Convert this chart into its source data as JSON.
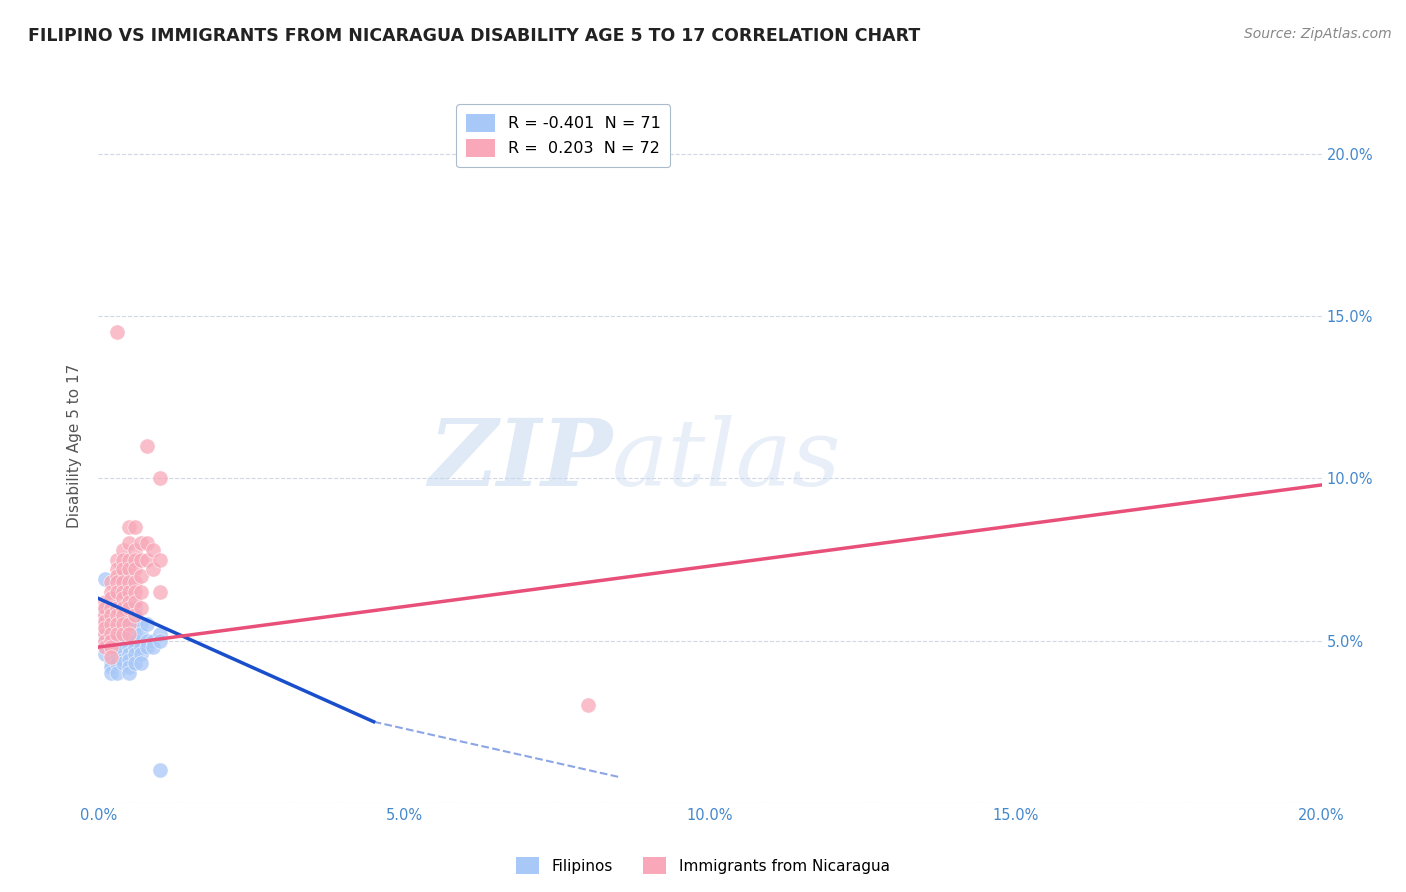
{
  "title": "FILIPINO VS IMMIGRANTS FROM NICARAGUA DISABILITY AGE 5 TO 17 CORRELATION CHART",
  "source": "Source: ZipAtlas.com",
  "ylabel": "Disability Age 5 to 17",
  "xlim": [
    0.0,
    0.2
  ],
  "ylim": [
    0.0,
    0.22
  ],
  "yticks": [
    0.0,
    0.05,
    0.1,
    0.15,
    0.2
  ],
  "ytick_labels": [
    "",
    "5.0%",
    "10.0%",
    "15.0%",
    "20.0%"
  ],
  "xticks": [
    0.0,
    0.05,
    0.1,
    0.15,
    0.2
  ],
  "xtick_labels": [
    "0.0%",
    "5.0%",
    "10.0%",
    "15.0%",
    "20.0%"
  ],
  "legend_entries": [
    {
      "label": "R = -0.401  N = 71",
      "color": "#a8c8f8"
    },
    {
      "label": "R =  0.203  N = 72",
      "color": "#f8a8b8"
    }
  ],
  "filipinos_color": "#a8c8f8",
  "nicaragua_color": "#f8a8b8",
  "filipinos_line_color": "#1a4fcc",
  "nicaragua_line_color": "#e8507a",
  "filipinos_scatter": [
    [
      0.001,
      0.069
    ],
    [
      0.001,
      0.059
    ],
    [
      0.001,
      0.059
    ],
    [
      0.001,
      0.052
    ],
    [
      0.001,
      0.06
    ],
    [
      0.001,
      0.058
    ],
    [
      0.001,
      0.055
    ],
    [
      0.001,
      0.05
    ],
    [
      0.001,
      0.048
    ],
    [
      0.001,
      0.046
    ],
    [
      0.002,
      0.063
    ],
    [
      0.002,
      0.058
    ],
    [
      0.002,
      0.055
    ],
    [
      0.002,
      0.052
    ],
    [
      0.002,
      0.05
    ],
    [
      0.002,
      0.048
    ],
    [
      0.002,
      0.046
    ],
    [
      0.002,
      0.043
    ],
    [
      0.002,
      0.042
    ],
    [
      0.002,
      0.04
    ],
    [
      0.003,
      0.06
    ],
    [
      0.003,
      0.058
    ],
    [
      0.003,
      0.055
    ],
    [
      0.003,
      0.052
    ],
    [
      0.003,
      0.05
    ],
    [
      0.003,
      0.048
    ],
    [
      0.003,
      0.046
    ],
    [
      0.003,
      0.045
    ],
    [
      0.003,
      0.043
    ],
    [
      0.003,
      0.04
    ],
    [
      0.004,
      0.07
    ],
    [
      0.004,
      0.065
    ],
    [
      0.004,
      0.06
    ],
    [
      0.004,
      0.057
    ],
    [
      0.004,
      0.055
    ],
    [
      0.004,
      0.052
    ],
    [
      0.004,
      0.05
    ],
    [
      0.004,
      0.047
    ],
    [
      0.004,
      0.044
    ],
    [
      0.004,
      0.043
    ],
    [
      0.005,
      0.06
    ],
    [
      0.005,
      0.057
    ],
    [
      0.005,
      0.055
    ],
    [
      0.005,
      0.052
    ],
    [
      0.005,
      0.05
    ],
    [
      0.005,
      0.048
    ],
    [
      0.005,
      0.046
    ],
    [
      0.005,
      0.044
    ],
    [
      0.005,
      0.042
    ],
    [
      0.005,
      0.04
    ],
    [
      0.006,
      0.06
    ],
    [
      0.006,
      0.058
    ],
    [
      0.006,
      0.055
    ],
    [
      0.006,
      0.052
    ],
    [
      0.006,
      0.05
    ],
    [
      0.006,
      0.048
    ],
    [
      0.006,
      0.046
    ],
    [
      0.006,
      0.043
    ],
    [
      0.007,
      0.055
    ],
    [
      0.007,
      0.052
    ],
    [
      0.007,
      0.048
    ],
    [
      0.007,
      0.046
    ],
    [
      0.007,
      0.043
    ],
    [
      0.008,
      0.055
    ],
    [
      0.008,
      0.05
    ],
    [
      0.008,
      0.048
    ],
    [
      0.009,
      0.05
    ],
    [
      0.009,
      0.048
    ],
    [
      0.01,
      0.052
    ],
    [
      0.01,
      0.05
    ],
    [
      0.01,
      0.01
    ]
  ],
  "nicaragua_scatter": [
    [
      0.001,
      0.058
    ],
    [
      0.001,
      0.062
    ],
    [
      0.001,
      0.055
    ],
    [
      0.001,
      0.052
    ],
    [
      0.001,
      0.058
    ],
    [
      0.001,
      0.06
    ],
    [
      0.001,
      0.056
    ],
    [
      0.001,
      0.054
    ],
    [
      0.001,
      0.05
    ],
    [
      0.001,
      0.048
    ],
    [
      0.002,
      0.068
    ],
    [
      0.002,
      0.065
    ],
    [
      0.002,
      0.063
    ],
    [
      0.002,
      0.06
    ],
    [
      0.002,
      0.058
    ],
    [
      0.002,
      0.055
    ],
    [
      0.002,
      0.052
    ],
    [
      0.002,
      0.05
    ],
    [
      0.002,
      0.048
    ],
    [
      0.002,
      0.045
    ],
    [
      0.003,
      0.075
    ],
    [
      0.003,
      0.072
    ],
    [
      0.003,
      0.07
    ],
    [
      0.003,
      0.068
    ],
    [
      0.003,
      0.065
    ],
    [
      0.003,
      0.06
    ],
    [
      0.003,
      0.058
    ],
    [
      0.003,
      0.055
    ],
    [
      0.003,
      0.052
    ],
    [
      0.003,
      0.145
    ],
    [
      0.004,
      0.078
    ],
    [
      0.004,
      0.075
    ],
    [
      0.004,
      0.072
    ],
    [
      0.004,
      0.068
    ],
    [
      0.004,
      0.065
    ],
    [
      0.004,
      0.063
    ],
    [
      0.004,
      0.06
    ],
    [
      0.004,
      0.058
    ],
    [
      0.004,
      0.055
    ],
    [
      0.004,
      0.052
    ],
    [
      0.005,
      0.085
    ],
    [
      0.005,
      0.08
    ],
    [
      0.005,
      0.075
    ],
    [
      0.005,
      0.072
    ],
    [
      0.005,
      0.068
    ],
    [
      0.005,
      0.065
    ],
    [
      0.005,
      0.062
    ],
    [
      0.005,
      0.06
    ],
    [
      0.005,
      0.055
    ],
    [
      0.005,
      0.052
    ],
    [
      0.006,
      0.085
    ],
    [
      0.006,
      0.078
    ],
    [
      0.006,
      0.075
    ],
    [
      0.006,
      0.072
    ],
    [
      0.006,
      0.068
    ],
    [
      0.006,
      0.065
    ],
    [
      0.006,
      0.062
    ],
    [
      0.006,
      0.058
    ],
    [
      0.007,
      0.08
    ],
    [
      0.007,
      0.075
    ],
    [
      0.007,
      0.07
    ],
    [
      0.007,
      0.065
    ],
    [
      0.007,
      0.06
    ],
    [
      0.008,
      0.11
    ],
    [
      0.008,
      0.08
    ],
    [
      0.008,
      0.075
    ],
    [
      0.009,
      0.078
    ],
    [
      0.009,
      0.072
    ],
    [
      0.01,
      0.1
    ],
    [
      0.01,
      0.075
    ],
    [
      0.01,
      0.065
    ],
    [
      0.08,
      0.03
    ]
  ],
  "filipinos_trendline_solid": [
    [
      0.0,
      0.063
    ],
    [
      0.045,
      0.025
    ]
  ],
  "filipinos_trendline_dash": [
    [
      0.045,
      0.025
    ],
    [
      0.085,
      0.008
    ]
  ],
  "nicaragua_trendline": [
    [
      0.0,
      0.048
    ],
    [
      0.2,
      0.098
    ]
  ],
  "background_color": "#ffffff",
  "grid_color": "#d0d8e8",
  "title_color": "#222222",
  "axis_label_color": "#555555",
  "tick_color": "#4488cc",
  "right_ytick_color": "#4488cc"
}
